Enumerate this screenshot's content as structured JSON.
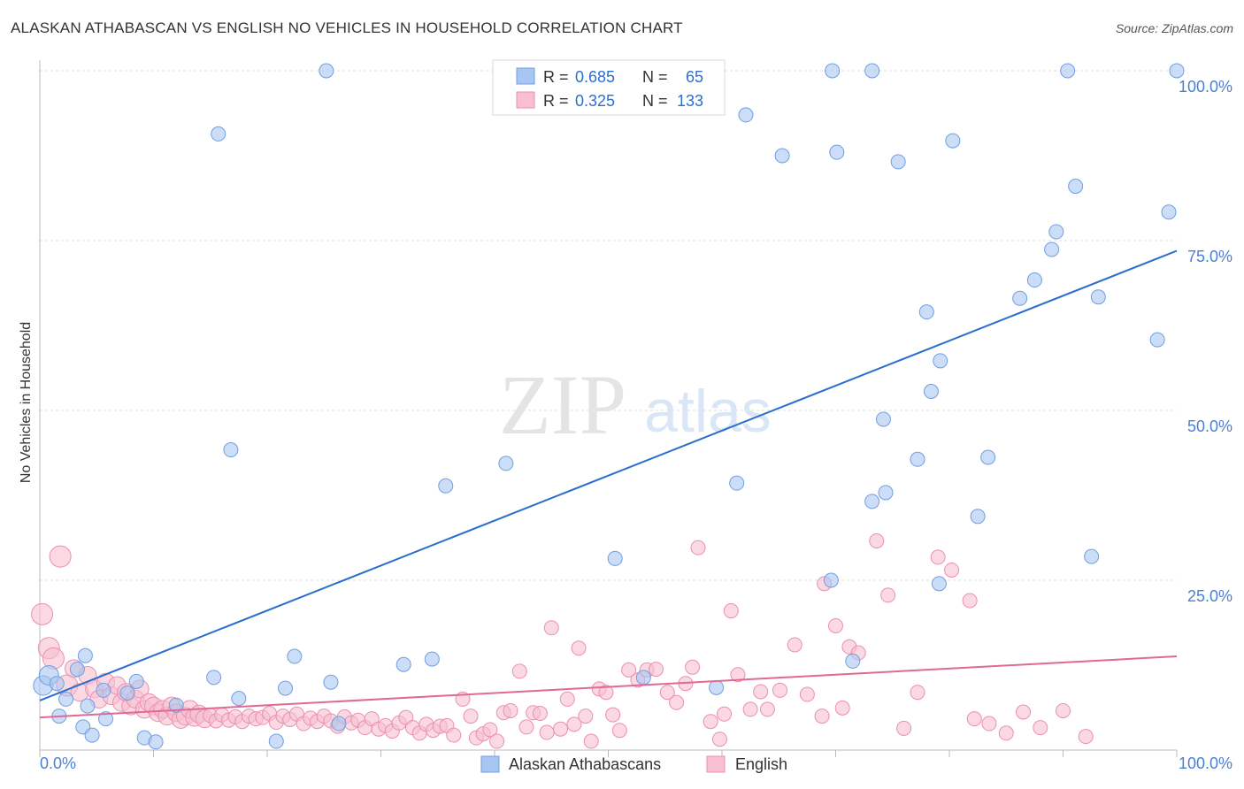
{
  "title": "ALASKAN ATHABASCAN VS ENGLISH NO VEHICLES IN HOUSEHOLD CORRELATION CHART",
  "source": "Source: ZipAtlas.com",
  "watermark": {
    "zip": "ZIP",
    "atlas": "atlas"
  },
  "legend_stats": [
    {
      "r_label": "R =",
      "r_value": "0.685",
      "n_label": "N =",
      "n_value": "65",
      "color": "#a9c6f2",
      "stroke": "#6f9fe0"
    },
    {
      "r_label": "R =",
      "r_value": "0.325",
      "n_label": "N =",
      "n_value": "133",
      "color": "#f7bfd0",
      "stroke": "#ec8fae"
    }
  ],
  "chart_data": {
    "type": "scatter",
    "title": "ALASKAN ATHABASCAN VS ENGLISH NO VEHICLES IN HOUSEHOLD CORRELATION CHART",
    "xlabel": "",
    "ylabel": "No Vehicles in Household",
    "xlim": [
      0,
      100
    ],
    "ylim": [
      0,
      100
    ],
    "x_tick_labels": [
      "0.0%",
      "100.0%"
    ],
    "y_tick_labels": [
      "25.0%",
      "50.0%",
      "75.0%",
      "100.0%"
    ],
    "y_ticks": [
      25,
      50,
      75,
      100
    ],
    "grid": true,
    "legend_position": "bottom",
    "series": [
      {
        "name": "Alaskan Athabascans",
        "color": "#a9c6f2",
        "stroke": "#6f9fe0",
        "line_color": "#2b6fce",
        "trend": [
          [
            0,
            7.3
          ],
          [
            100,
            73.5
          ]
        ],
        "points": [
          [
            0.3,
            9.5
          ],
          [
            0.8,
            11.0
          ],
          [
            1.5,
            9.8
          ],
          [
            1.7,
            5.0
          ],
          [
            2.3,
            7.5
          ],
          [
            3.3,
            11.9
          ],
          [
            3.8,
            3.4
          ],
          [
            4.0,
            13.9
          ],
          [
            4.2,
            6.5
          ],
          [
            4.6,
            2.2
          ],
          [
            5.8,
            4.6
          ],
          [
            5.6,
            8.8
          ],
          [
            7.7,
            8.4
          ],
          [
            8.5,
            10.1
          ],
          [
            9.2,
            1.8
          ],
          [
            10.2,
            1.2
          ],
          [
            12.0,
            6.6
          ],
          [
            15.3,
            10.7
          ],
          [
            15.7,
            90.7
          ],
          [
            16.8,
            44.2
          ],
          [
            17.5,
            7.6
          ],
          [
            20.8,
            1.3
          ],
          [
            21.6,
            9.1
          ],
          [
            22.4,
            13.8
          ],
          [
            25.2,
            100.0
          ],
          [
            25.6,
            10.0
          ],
          [
            26.3,
            3.9
          ],
          [
            32.0,
            12.6
          ],
          [
            34.5,
            13.4
          ],
          [
            35.7,
            38.9
          ],
          [
            41.0,
            42.2
          ],
          [
            50.6,
            28.2
          ],
          [
            53.1,
            10.7
          ],
          [
            59.5,
            9.2
          ],
          [
            61.3,
            39.3
          ],
          [
            62.1,
            93.5
          ],
          [
            65.3,
            87.5
          ],
          [
            69.7,
            100.0
          ],
          [
            69.6,
            25.0
          ],
          [
            70.1,
            88.0
          ],
          [
            71.5,
            13.1
          ],
          [
            73.2,
            100.0
          ],
          [
            73.2,
            36.6
          ],
          [
            74.2,
            48.7
          ],
          [
            74.4,
            37.9
          ],
          [
            75.5,
            86.6
          ],
          [
            77.2,
            42.8
          ],
          [
            78.0,
            64.5
          ],
          [
            78.4,
            52.8
          ],
          [
            79.1,
            24.5
          ],
          [
            79.2,
            57.3
          ],
          [
            80.3,
            89.7
          ],
          [
            82.5,
            34.4
          ],
          [
            83.4,
            43.1
          ],
          [
            86.2,
            66.5
          ],
          [
            87.5,
            69.2
          ],
          [
            89.0,
            73.7
          ],
          [
            89.4,
            76.3
          ],
          [
            90.4,
            100.0
          ],
          [
            91.1,
            83.0
          ],
          [
            92.5,
            28.5
          ],
          [
            93.1,
            66.7
          ],
          [
            98.3,
            60.4
          ],
          [
            99.3,
            79.2
          ],
          [
            100.0,
            100.0
          ]
        ]
      },
      {
        "name": "English",
        "color": "#f7bfd0",
        "stroke": "#ec8fae",
        "line_color": "#e06a94",
        "trend": [
          [
            0,
            4.8
          ],
          [
            100,
            13.8
          ]
        ],
        "points": [
          [
            0.2,
            20.0
          ],
          [
            0.8,
            15.0
          ],
          [
            1.2,
            13.5
          ],
          [
            1.8,
            28.5
          ],
          [
            2.4,
            9.5
          ],
          [
            3.0,
            12.0
          ],
          [
            3.5,
            8.5
          ],
          [
            4.2,
            11.0
          ],
          [
            4.8,
            9.0
          ],
          [
            5.2,
            7.5
          ],
          [
            5.8,
            10.0
          ],
          [
            6.3,
            8.0
          ],
          [
            6.8,
            9.5
          ],
          [
            7.2,
            7.0
          ],
          [
            7.6,
            8.5
          ],
          [
            8.0,
            6.5
          ],
          [
            8.4,
            7.5
          ],
          [
            8.8,
            9.0
          ],
          [
            9.2,
            6.0
          ],
          [
            9.6,
            7.0
          ],
          [
            10.0,
            6.5
          ],
          [
            10.4,
            5.5
          ],
          [
            10.8,
            6.0
          ],
          [
            11.2,
            5.0
          ],
          [
            11.6,
            6.5
          ],
          [
            12.0,
            5.5
          ],
          [
            12.4,
            4.5
          ],
          [
            12.8,
            5.0
          ],
          [
            13.2,
            6.0
          ],
          [
            13.6,
            4.8
          ],
          [
            14.0,
            5.3
          ],
          [
            14.5,
            4.6
          ],
          [
            15.0,
            5.1
          ],
          [
            15.5,
            4.3
          ],
          [
            16.0,
            5.2
          ],
          [
            16.6,
            4.4
          ],
          [
            17.2,
            4.9
          ],
          [
            17.8,
            4.2
          ],
          [
            18.4,
            5.0
          ],
          [
            19.0,
            4.6
          ],
          [
            19.6,
            4.8
          ],
          [
            20.2,
            5.4
          ],
          [
            20.8,
            4.1
          ],
          [
            21.4,
            5.0
          ],
          [
            22.0,
            4.5
          ],
          [
            22.6,
            5.3
          ],
          [
            23.2,
            3.9
          ],
          [
            23.8,
            4.7
          ],
          [
            24.4,
            4.2
          ],
          [
            25.0,
            5.0
          ],
          [
            25.6,
            4.3
          ],
          [
            26.2,
            3.5
          ],
          [
            26.8,
            4.9
          ],
          [
            27.4,
            4.0
          ],
          [
            28.0,
            4.4
          ],
          [
            28.6,
            3.3
          ],
          [
            29.2,
            4.6
          ],
          [
            29.8,
            3.1
          ],
          [
            30.4,
            3.6
          ],
          [
            31.0,
            2.8
          ],
          [
            31.6,
            4.0
          ],
          [
            32.2,
            4.8
          ],
          [
            32.8,
            3.3
          ],
          [
            33.4,
            2.5
          ],
          [
            34.0,
            3.8
          ],
          [
            34.6,
            2.9
          ],
          [
            35.2,
            3.5
          ],
          [
            35.8,
            3.6
          ],
          [
            36.4,
            2.2
          ],
          [
            37.2,
            7.5
          ],
          [
            37.9,
            5.0
          ],
          [
            38.4,
            1.8
          ],
          [
            39.0,
            2.4
          ],
          [
            39.6,
            3.0
          ],
          [
            40.2,
            1.3
          ],
          [
            40.8,
            5.5
          ],
          [
            41.4,
            5.8
          ],
          [
            42.2,
            11.6
          ],
          [
            42.8,
            3.4
          ],
          [
            43.4,
            5.5
          ],
          [
            44.0,
            5.4
          ],
          [
            44.6,
            2.6
          ],
          [
            45.0,
            18.0
          ],
          [
            45.8,
            3.1
          ],
          [
            46.4,
            7.5
          ],
          [
            47.0,
            3.8
          ],
          [
            47.4,
            15.0
          ],
          [
            48.0,
            5.0
          ],
          [
            48.5,
            1.3
          ],
          [
            49.2,
            9.0
          ],
          [
            49.8,
            8.5
          ],
          [
            50.4,
            5.2
          ],
          [
            51.0,
            2.9
          ],
          [
            51.8,
            11.8
          ],
          [
            52.6,
            10.3
          ],
          [
            53.4,
            11.8
          ],
          [
            54.2,
            11.9
          ],
          [
            55.2,
            8.5
          ],
          [
            56.0,
            7.0
          ],
          [
            56.8,
            9.8
          ],
          [
            57.4,
            12.2
          ],
          [
            57.9,
            29.8
          ],
          [
            59.0,
            4.2
          ],
          [
            59.8,
            1.6
          ],
          [
            60.2,
            5.3
          ],
          [
            60.8,
            20.5
          ],
          [
            61.4,
            11.1
          ],
          [
            62.5,
            6.0
          ],
          [
            63.4,
            8.6
          ],
          [
            64.0,
            6.0
          ],
          [
            65.1,
            8.8
          ],
          [
            66.4,
            15.5
          ],
          [
            67.5,
            8.2
          ],
          [
            68.8,
            5.0
          ],
          [
            69.0,
            24.5
          ],
          [
            70.0,
            18.3
          ],
          [
            70.6,
            6.2
          ],
          [
            71.2,
            15.2
          ],
          [
            72.0,
            14.3
          ],
          [
            73.6,
            30.8
          ],
          [
            74.6,
            22.8
          ],
          [
            76.0,
            3.2
          ],
          [
            77.2,
            8.5
          ],
          [
            79.0,
            28.4
          ],
          [
            80.2,
            26.5
          ],
          [
            81.8,
            22.0
          ],
          [
            82.2,
            4.6
          ],
          [
            83.5,
            3.9
          ],
          [
            85.0,
            2.5
          ],
          [
            86.5,
            5.6
          ],
          [
            88.0,
            3.3
          ],
          [
            90.0,
            5.8
          ],
          [
            92.0,
            2.0
          ]
        ]
      }
    ]
  }
}
